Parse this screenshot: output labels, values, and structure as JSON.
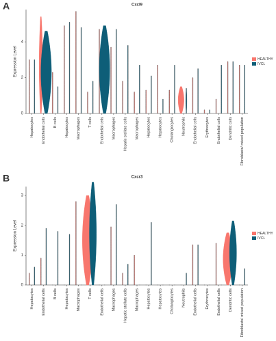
{
  "chart_data": [
    {
      "type": "violin",
      "panel": "A",
      "title": "Cxcl9",
      "y_label": "Expression Level",
      "categories": [
        "Hepatocytes",
        "Endothelial cells",
        "B cells",
        "Hepatocytes",
        "Macrophages",
        "T cells",
        "Endothelial cells",
        "Macrophages",
        "Hepatic stellate cells",
        "Macrophages",
        "Hepatocytes",
        "Hepatocytes",
        "Cholangiocytes",
        "Neutrophils",
        "Endothelial cells",
        "Erythrocytes",
        "Endothelial cells",
        "Dendritic cells",
        "Fibroblasts/ mixed population"
      ],
      "series": [
        {
          "name": "HEALTHY",
          "color": "#f8766d",
          "values": [
            3.0,
            5.4,
            2.3,
            4.9,
            5.7,
            1.2,
            4.7,
            3.7,
            1.8,
            1.2,
            1.3,
            2.7,
            1.3,
            1.5,
            2.0,
            0.2,
            0.8,
            2.9,
            2.7
          ],
          "widths": [
            0.05,
            0.3,
            0.05,
            0.05,
            0.05,
            0.05,
            0.05,
            0.05,
            0.05,
            0.05,
            0.05,
            0.05,
            0.05,
            0.5,
            0.05,
            0.05,
            0.05,
            0.05,
            0.05
          ]
        },
        {
          "name": "IVCL",
          "color": "#0e5e78",
          "values": [
            3.0,
            4.6,
            1.5,
            5.1,
            4.8,
            1.8,
            4.9,
            4.7,
            3.8,
            2.7,
            2.1,
            0.8,
            2.7,
            1.4,
            2.5,
            0.2,
            2.7,
            2.9,
            2.7
          ],
          "widths": [
            0.05,
            0.9,
            0.05,
            0.05,
            0.05,
            0.05,
            0.9,
            0.05,
            0.05,
            0.05,
            0.05,
            0.05,
            0.05,
            0.1,
            0.05,
            0.05,
            0.05,
            0.05,
            0.05
          ]
        }
      ],
      "ylim": [
        0,
        5.8
      ],
      "yticks": [
        0,
        2,
        4
      ],
      "legend": "right"
    },
    {
      "type": "violin",
      "panel": "B",
      "title": "Cxcr3",
      "y_label": "Expression Level",
      "categories": [
        "Hepatocytes",
        "Endothelial cells",
        "B cells",
        "Hepatocytes",
        "Macrophages",
        "T cells",
        "Endothelial cells",
        "Macrophages",
        "Hepatic stellate cells",
        "Macrophages",
        "Hepatocytes",
        "Hepatocytes",
        "Cholangiocytes",
        "Neutrophils",
        "Endothelial cells",
        "Erythrocytes",
        "Endothelial cells",
        "Dendritic cells",
        "Fibroblasts/ mixed population"
      ],
      "series": [
        {
          "name": "HEALTHY",
          "color": "#f8766d",
          "values": [
            0.4,
            0.9,
            0,
            0,
            2.8,
            3.0,
            0,
            1.95,
            0.4,
            1.0,
            0,
            0,
            0,
            0,
            1.35,
            0,
            1.4,
            1.75,
            0
          ],
          "widths": [
            0.05,
            0.05,
            0.05,
            0.05,
            0.05,
            0.9,
            0.05,
            0.05,
            0.05,
            0.05,
            0.05,
            0.05,
            0.05,
            0.05,
            0.05,
            0.05,
            0.05,
            0.8,
            0.05
          ]
        },
        {
          "name": "IVCL",
          "color": "#0e5e78",
          "values": [
            0.6,
            1.9,
            1.8,
            1.7,
            0,
            3.45,
            0,
            2.7,
            0.7,
            0,
            2.1,
            0,
            0,
            0.4,
            1.35,
            0,
            0,
            2.15,
            0.55
          ],
          "widths": [
            0.05,
            0.05,
            0.05,
            0.05,
            0.05,
            0.6,
            0.05,
            0.05,
            0.05,
            0.05,
            0.05,
            0.05,
            0.05,
            0.05,
            0.05,
            0.05,
            0.05,
            0.6,
            0.05
          ]
        }
      ],
      "ylim": [
        0,
        3.3
      ],
      "yticks": [
        0,
        1,
        2,
        3
      ],
      "legend": "right"
    }
  ]
}
